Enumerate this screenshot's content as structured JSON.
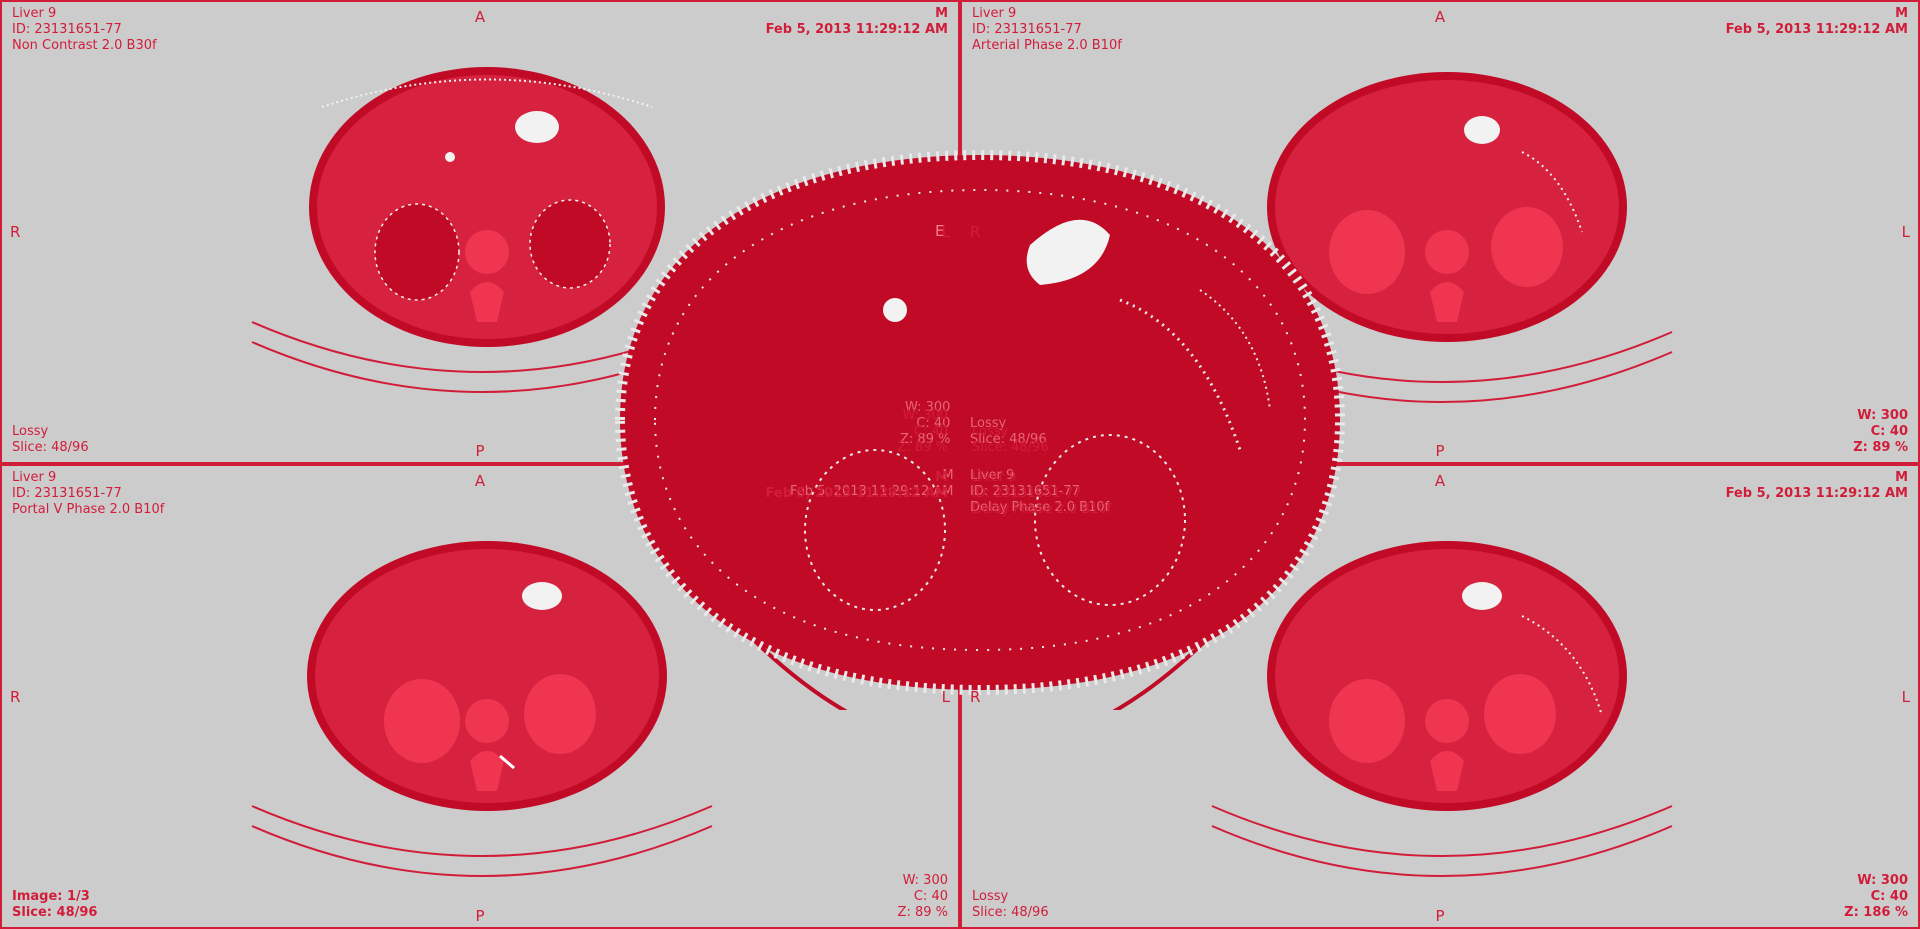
{
  "panes": [
    {
      "id": "top-left",
      "patient": "Liver 9",
      "patient_id": "ID: 23131651-77",
      "series": "Non Contrast 2.0 B30f",
      "date": "Feb 5, 2013 11:29:12 AM",
      "corner_tr": "M",
      "compression": "Lossy",
      "slice": "Slice: 48/96",
      "window": "W: 300",
      "center": "C: 40",
      "zoom": "Z: 89 %",
      "orient_top": "A",
      "orient_bottom": "P",
      "orient_left": "R",
      "orient_right": "L"
    },
    {
      "id": "top-right",
      "patient": "Liver 9",
      "patient_id": "ID: 23131651-77",
      "series": "Arterial Phase 2.0 B10f",
      "date": "Feb 5, 2013 11:29:12 AM",
      "corner_tr": "M",
      "compression": "Lossy",
      "slice": "Slice: 48/96",
      "window": "W: 300",
      "center": "C: 40",
      "zoom": "Z: 89 %",
      "orient_top": "A",
      "orient_bottom": "P",
      "orient_left": "R",
      "orient_right": "L"
    },
    {
      "id": "bottom-left",
      "patient": "Liver 9",
      "patient_id": "ID: 23131651-77",
      "series": "Portal V Phase 2.0 B10f",
      "date": "Feb 5, 2013 11:29:12 AM",
      "corner_tr": "M",
      "compression": "Lossy",
      "slice": "Slice: 48/96",
      "image": "Image: 1/3",
      "window": "W: 300",
      "center": "C: 40",
      "zoom": "Z: 89 %",
      "orient_top": "A",
      "orient_bottom": "P",
      "orient_left": "R",
      "orient_right": "L"
    },
    {
      "id": "bottom-right",
      "patient": "Liver 9",
      "patient_id": "ID: 23131651-77",
      "series": "Delay Phase 2.0 B10f",
      "date": "Feb 5, 2013 11:29:12 AM",
      "corner_tr": "M",
      "compression": "Lossy",
      "slice": "Slice: 48/96",
      "window": "W: 300",
      "center": "C: 40",
      "zoom": "Z: 186 %",
      "orient_top": "A",
      "orient_bottom": "P",
      "orient_left": "R",
      "orient_right": "L"
    }
  ],
  "colors": {
    "background": "#cccccc",
    "overlay": "#d21d3a",
    "tissue": "#d6223f",
    "tissue_dark": "#c10a26",
    "organ": "#f03550"
  },
  "center_overlay": {
    "window": "W: 300",
    "center": "C: 40",
    "zoom": "Z: 89 %",
    "compression": "Lossy",
    "slice": "Slice: 48/96",
    "corner": "M",
    "date": "Feb 5, 2013 11:29:12 AM",
    "patient": "Liver 9",
    "patient_id": "ID: 23131651-77",
    "series": "Delay Phase 2.0 B10f",
    "label_e": "E"
  }
}
